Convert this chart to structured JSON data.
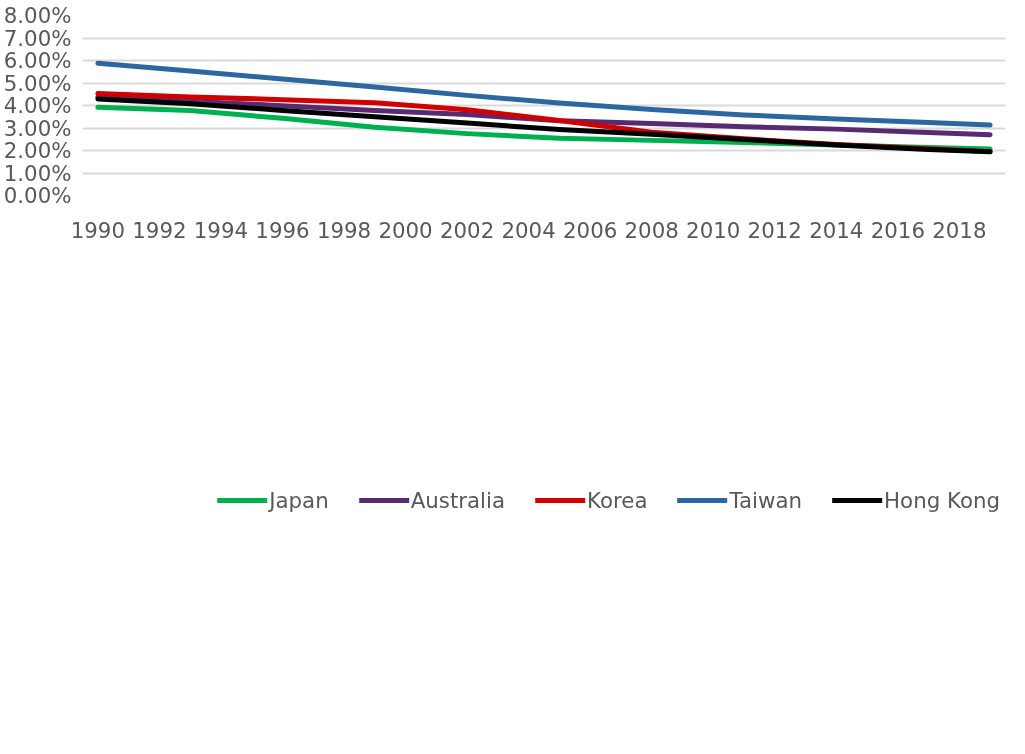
{
  "chart_data": {
    "type": "line",
    "x": [
      1990,
      1993,
      1996,
      1999,
      2002,
      2005,
      2008,
      2011,
      2014,
      2017,
      2019
    ],
    "series": [
      {
        "name": "Japan",
        "color": "#00b050",
        "values": [
          3.92,
          3.78,
          3.43,
          3.03,
          2.75,
          2.54,
          2.45,
          2.36,
          2.24,
          2.13,
          2.07
        ]
      },
      {
        "name": "Australia",
        "color": "#582a72",
        "values": [
          4.37,
          4.19,
          3.99,
          3.78,
          3.6,
          3.32,
          3.2,
          3.06,
          2.95,
          2.8,
          2.7
        ]
      },
      {
        "name": "Korea",
        "color": "#d00000",
        "values": [
          4.53,
          4.38,
          4.26,
          4.12,
          3.81,
          3.33,
          2.81,
          2.52,
          2.27,
          2.08,
          1.95
        ]
      },
      {
        "name": "Taiwan",
        "color": "#2e67a0",
        "values": [
          5.88,
          5.53,
          5.18,
          4.82,
          4.45,
          4.11,
          3.82,
          3.58,
          3.4,
          3.24,
          3.13
        ]
      },
      {
        "name": "Hong Kong",
        "color": "#000000",
        "values": [
          4.29,
          4.08,
          3.78,
          3.5,
          3.22,
          2.93,
          2.72,
          2.49,
          2.24,
          2.04,
          1.94
        ]
      }
    ],
    "xlim": [
      1989.5,
      2019.5
    ],
    "xticks": [
      1990,
      1992,
      1994,
      1996,
      1998,
      2000,
      2002,
      2004,
      2006,
      2008,
      2010,
      2012,
      2014,
      2016,
      2018
    ],
    "ylim": [
      0,
      8
    ],
    "yticks": [
      {
        "value": 0,
        "label": "0.00%"
      },
      {
        "value": 1,
        "label": "1.00%"
      },
      {
        "value": 2,
        "label": "2.00%"
      },
      {
        "value": 3,
        "label": "3.00%"
      },
      {
        "value": 4,
        "label": "4.00%"
      },
      {
        "value": 5,
        "label": "5.00%"
      },
      {
        "value": 6,
        "label": "6.00%"
      },
      {
        "value": 7,
        "label": "7.00%"
      },
      {
        "value": 8,
        "label": "8.00%"
      }
    ],
    "grid": "y",
    "legend": "bottom",
    "line_style": "solid"
  }
}
